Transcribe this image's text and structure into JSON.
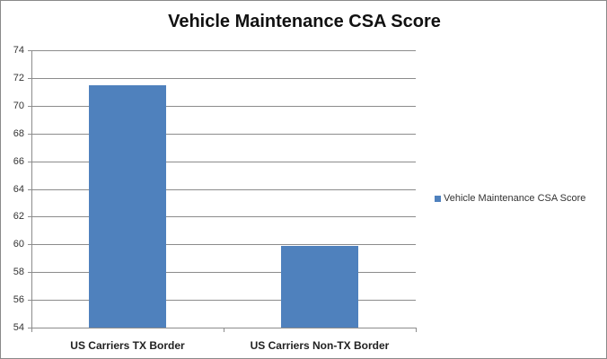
{
  "chart_data": {
    "type": "bar",
    "title": "Vehicle Maintenance CSA Score",
    "xlabel": "",
    "ylabel": "",
    "categories": [
      "US Carriers TX Border",
      "US Carriers Non-TX Border"
    ],
    "series": [
      {
        "name": "Vehicle Maintenance CSA Score",
        "values": [
          71.5,
          59.9
        ],
        "color": "#4f81bd"
      }
    ],
    "ylim": [
      54,
      74
    ],
    "yticks": [
      54,
      56,
      58,
      60,
      62,
      64,
      66,
      68,
      70,
      72,
      74
    ],
    "grid": true,
    "legend_position": "right"
  },
  "labels": {
    "title": "Vehicle Maintenance CSA Score",
    "legend": "Vehicle Maintenance CSA Score",
    "cat0": "US Carriers TX Border",
    "cat1": "US Carriers Non-TX Border",
    "y": [
      "54",
      "56",
      "58",
      "60",
      "62",
      "64",
      "66",
      "68",
      "70",
      "72",
      "74"
    ]
  }
}
